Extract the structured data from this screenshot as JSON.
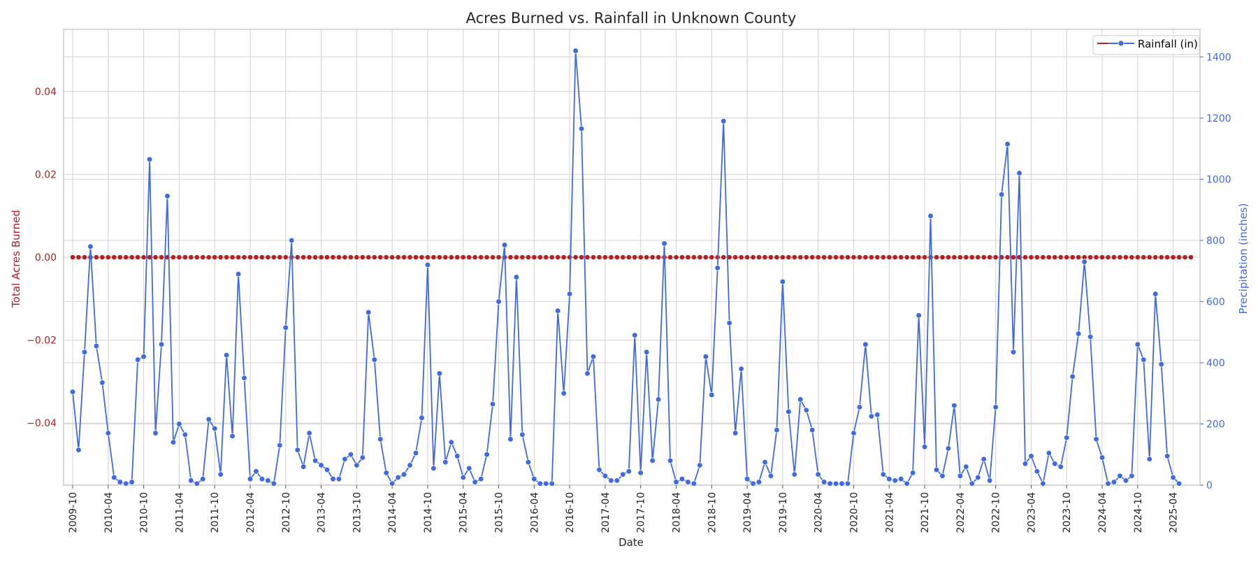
{
  "chart_data": {
    "type": "line",
    "title": "Acres Burned vs. Rainfall in Unknown County",
    "xlabel": "Date",
    "ylabel_left": "Total Acres Burned",
    "ylabel_right": "Precipitation (inches)",
    "x_start": "2009-10",
    "x_end": "2025-07",
    "x_ticks": [
      "2009-10",
      "2010-04",
      "2010-10",
      "2011-04",
      "2011-10",
      "2012-04",
      "2012-10",
      "2013-04",
      "2013-10",
      "2014-04",
      "2014-10",
      "2015-04",
      "2015-10",
      "2016-04",
      "2016-10",
      "2017-04",
      "2017-10",
      "2018-04",
      "2018-10",
      "2019-04",
      "2019-10",
      "2020-04",
      "2020-10",
      "2021-04",
      "2021-10",
      "2022-04",
      "2022-10",
      "2023-04",
      "2023-10",
      "2024-04",
      "2024-10",
      "2025-04"
    ],
    "ylim_left": [
      -0.055,
      0.055
    ],
    "yticks_left": [
      "0.04",
      "0.02",
      "0.00",
      "−0.02",
      "−0.04"
    ],
    "ylim_right": [
      0,
      1490
    ],
    "yticks_right": [
      "0",
      "200",
      "400",
      "600",
      "800",
      "1000",
      "1200",
      "1400"
    ],
    "grid": true,
    "legend_position": "top-right",
    "legend_entries": [
      "Rainfall (in)"
    ],
    "colors": {
      "acres": "#b22222",
      "rainfall": "#4169e1",
      "grid": "#d9d9d9",
      "frame": "#cccccc"
    },
    "series": [
      {
        "axis": "left",
        "marker": "o",
        "value": 0.0,
        "count": 190
      },
      {
        "name": "Rainfall (in)",
        "axis": "right",
        "marker": "o",
        "values": [
          305,
          115,
          435,
          780,
          455,
          335,
          170,
          25,
          10,
          5,
          10,
          410,
          420,
          1065,
          170,
          460,
          945,
          140,
          200,
          165,
          15,
          5,
          20,
          215,
          185,
          35,
          425,
          160,
          690,
          350,
          20,
          45,
          20,
          15,
          5,
          130,
          515,
          800,
          115,
          60,
          170,
          80,
          65,
          50,
          20,
          20,
          85,
          100,
          65,
          90,
          565,
          410,
          150,
          40,
          5,
          25,
          35,
          65,
          105,
          220,
          720,
          55,
          365,
          75,
          140,
          95,
          25,
          55,
          10,
          20,
          100,
          265,
          600,
          785,
          150,
          680,
          165,
          75,
          20,
          5,
          5,
          5,
          570,
          300,
          625,
          1420,
          1165,
          365,
          420,
          50,
          30,
          15,
          15,
          35,
          45,
          490,
          40,
          435,
          80,
          280,
          790,
          80,
          10,
          20,
          10,
          5,
          65,
          420,
          295,
          710,
          1190,
          530,
          170,
          380,
          20,
          5,
          10,
          75,
          30,
          180,
          665,
          240,
          35,
          280,
          245,
          180,
          35,
          10,
          5,
          5,
          5,
          5,
          170,
          255,
          460,
          225,
          230,
          35,
          20,
          15,
          20,
          5,
          40,
          555,
          125,
          880,
          50,
          30,
          120,
          260,
          30,
          60,
          5,
          25,
          85,
          15,
          255,
          950,
          1115,
          435,
          1020,
          70,
          95,
          45,
          5,
          105,
          70,
          60,
          155,
          355,
          495,
          730,
          485,
          150,
          90,
          5,
          10,
          30,
          15,
          30,
          460,
          410,
          85,
          625,
          395,
          95,
          25,
          5
        ]
      }
    ]
  }
}
